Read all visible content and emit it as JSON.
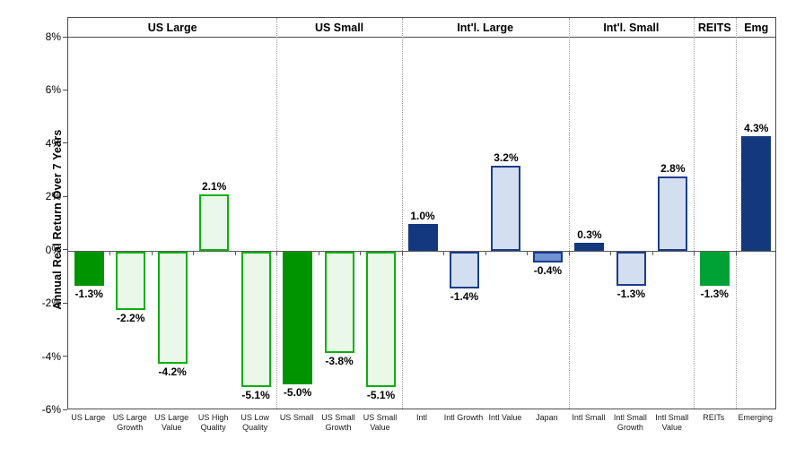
{
  "chart_data": {
    "type": "bar",
    "title": "",
    "xlabel": "",
    "ylabel": "Annual Real Return Over 7 Years",
    "ylim": [
      -6,
      8
    ],
    "grid": "off",
    "legend": "none",
    "yticks": [
      {
        "value": 8,
        "label": "8%"
      },
      {
        "value": 6,
        "label": "6%"
      },
      {
        "value": 4,
        "label": "4%"
      },
      {
        "value": 2,
        "label": "2%"
      },
      {
        "value": 0,
        "label": "0%"
      },
      {
        "value": -2,
        "label": "-2%"
      },
      {
        "value": -4,
        "label": "-4%"
      },
      {
        "value": -6,
        "label": "-6%"
      }
    ],
    "groups": [
      {
        "label": "US Large",
        "count": 5
      },
      {
        "label": "US Small",
        "count": 3
      },
      {
        "label": "Int'l. Large",
        "count": 4
      },
      {
        "label": "Int'l. Small",
        "count": 3
      },
      {
        "label": "REITS",
        "count": 1
      },
      {
        "label": "Emg",
        "count": 1
      }
    ],
    "bars": [
      {
        "category": "US Large",
        "value": -1.3,
        "label": "-1.3%",
        "style": "green-solid"
      },
      {
        "category": "US Large Growth",
        "value": -2.2,
        "label": "-2.2%",
        "style": "green-outline"
      },
      {
        "category": "US Large Value",
        "value": -4.2,
        "label": "-4.2%",
        "style": "green-outline"
      },
      {
        "category": "US High Quality",
        "value": 2.1,
        "label": "2.1%",
        "style": "green-outline"
      },
      {
        "category": "US Low Quality",
        "value": -5.1,
        "label": "-5.1%",
        "style": "green-outline"
      },
      {
        "category": "US Small",
        "value": -5.0,
        "label": "-5.0%",
        "style": "green-solid"
      },
      {
        "category": "US Small Growth",
        "value": -3.8,
        "label": "-3.8%",
        "style": "green-outline"
      },
      {
        "category": "US Small Value",
        "value": -5.1,
        "label": "-5.1%",
        "style": "green-outline"
      },
      {
        "category": "Intl",
        "value": 1.0,
        "label": "1.0%",
        "style": "navy-solid"
      },
      {
        "category": "Intl Growth",
        "value": -1.4,
        "label": "-1.4%",
        "style": "blue-outline"
      },
      {
        "category": "Intl Value",
        "value": 3.2,
        "label": "3.2%",
        "style": "blue-outline"
      },
      {
        "category": "Japan",
        "value": -0.4,
        "label": "-0.4%",
        "style": "blue-medium"
      },
      {
        "category": "Intl Small",
        "value": 0.3,
        "label": "0.3%",
        "style": "navy-solid"
      },
      {
        "category": "Intl Small Growth",
        "value": -1.3,
        "label": "-1.3%",
        "style": "blue-outline"
      },
      {
        "category": "Intl Small Value",
        "value": 2.8,
        "label": "2.8%",
        "style": "blue-outline"
      },
      {
        "category": "REITs",
        "value": -1.3,
        "label": "-1.3%",
        "style": "green-bright"
      },
      {
        "category": "Emerging",
        "value": 4.3,
        "label": "4.3%",
        "style": "navy-solid"
      }
    ],
    "colors": {
      "green-solid": {
        "fill": "#009500",
        "border": "#009500"
      },
      "green-bright": {
        "fill": "#00a236",
        "border": "#00a236"
      },
      "green-outline": {
        "fill": "#eaf8ea",
        "border": "#0cb00c"
      },
      "navy-solid": {
        "fill": "#14387e",
        "border": "#14387e"
      },
      "blue-outline": {
        "fill": "#d3dff0",
        "border": "#1a3c8c"
      },
      "blue-medium": {
        "fill": "#7092d0",
        "border": "#1a3c8c"
      }
    }
  }
}
